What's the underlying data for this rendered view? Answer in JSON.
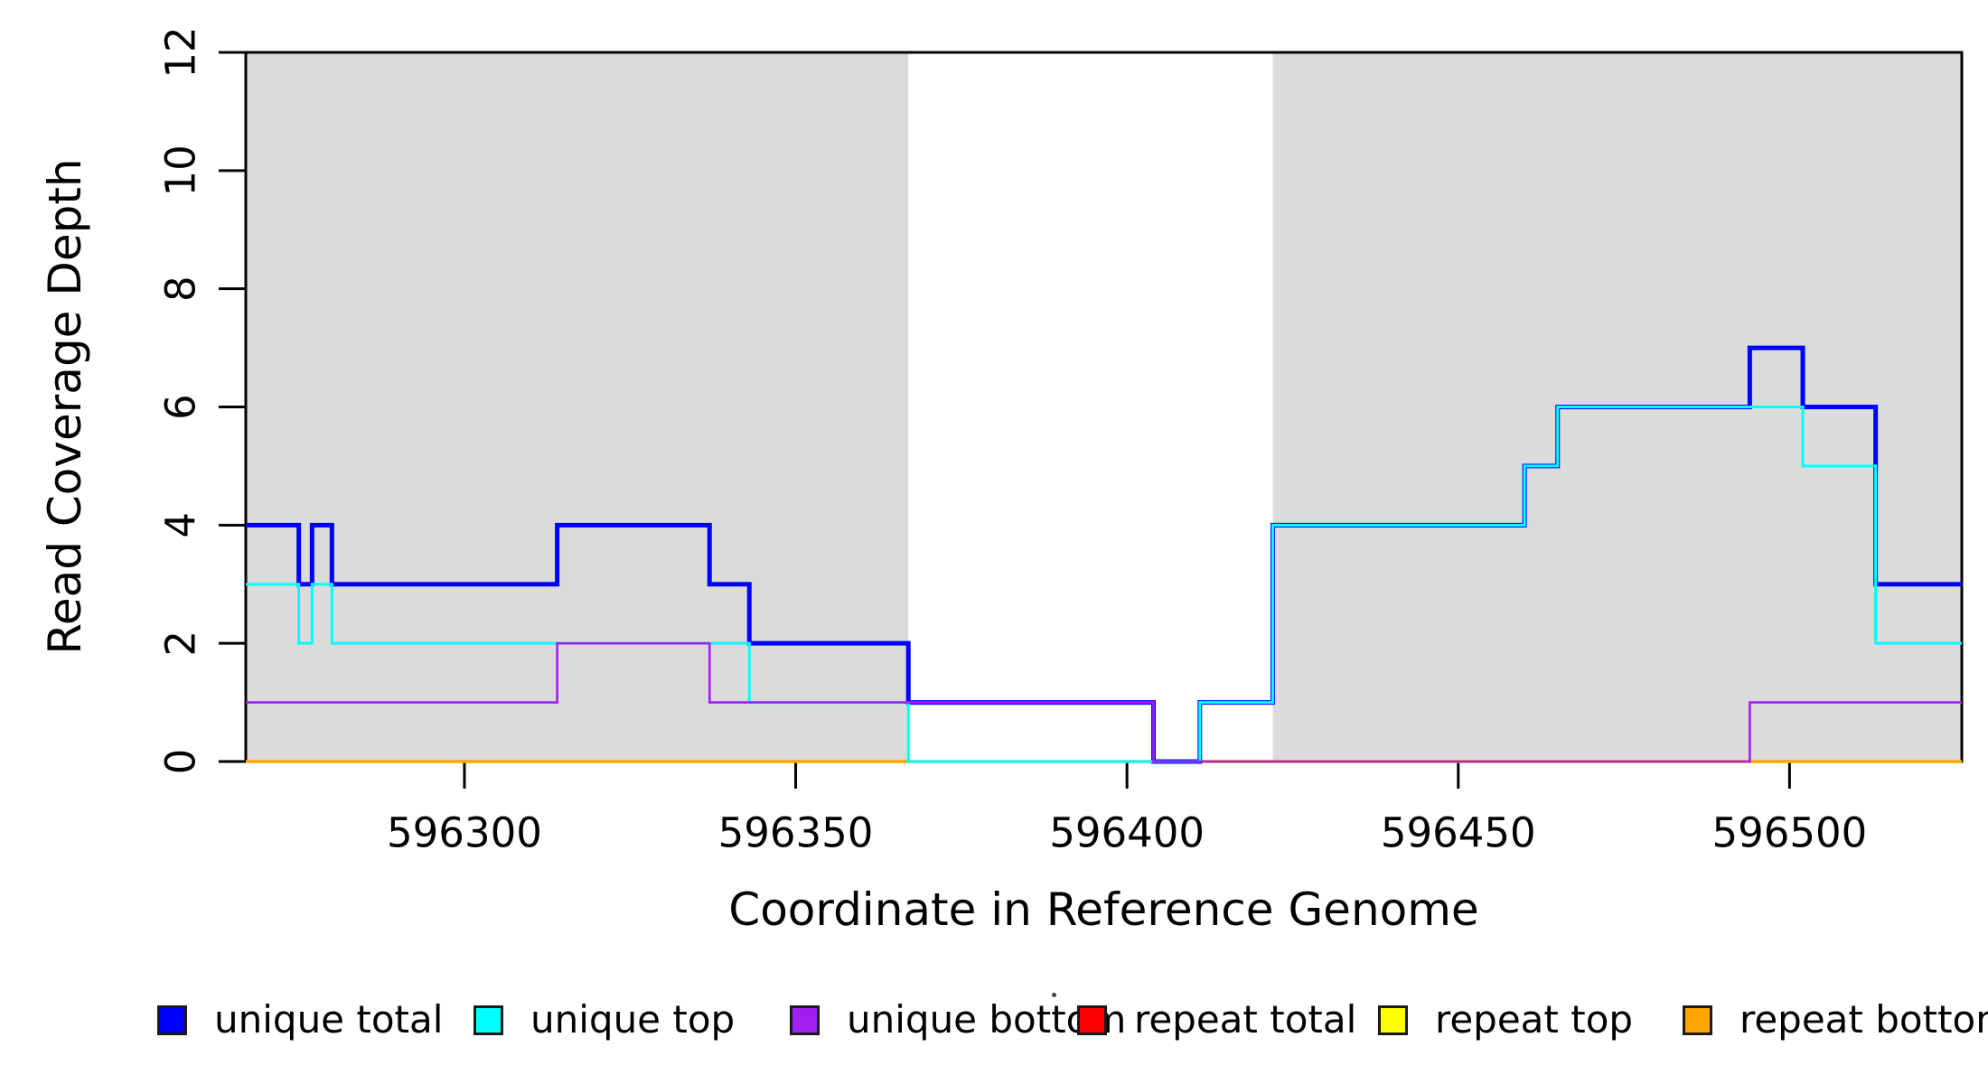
{
  "figure": {
    "xlabel": "Coordinate in Reference Genome",
    "ylabel": "Read Coverage Depth"
  },
  "legend": {
    "items": [
      {
        "label": "unique total",
        "color": "#0000FF"
      },
      {
        "label": "unique top",
        "color": "#00FFFF"
      },
      {
        "label": "unique bottom",
        "color": "#A020F0"
      },
      {
        "label": "repeat total",
        "color": "#FF0000"
      },
      {
        "label": "repeat top",
        "color": "#FFFF00"
      },
      {
        "label": "repeat bottom",
        "color": "#FFA500"
      }
    ]
  },
  "chart_data": {
    "type": "line",
    "subtype": "step-post",
    "title": "",
    "xlabel": "Coordinate in Reference Genome",
    "ylabel": "Read Coverage Depth",
    "xlim": [
      596267,
      596526
    ],
    "ylim": [
      0,
      12
    ],
    "xticks": [
      596300,
      596350,
      596400,
      596450,
      596500
    ],
    "yticks": [
      0,
      2,
      4,
      6,
      8,
      10,
      12
    ],
    "grid": false,
    "legend_position": "bottom",
    "plot_background": "#FFFFFF",
    "shaded_regions": [
      {
        "x0": 596267,
        "x1": 596367,
        "color": "#DBDBDB"
      },
      {
        "x0": 596422,
        "x1": 596526,
        "color": "#DBDBDB"
      }
    ],
    "series": [
      {
        "name": "repeat total",
        "color": "#FF0000",
        "width": 3,
        "points": [
          [
            596267,
            0
          ]
        ]
      },
      {
        "name": "repeat top",
        "color": "#FFFF00",
        "width": 3,
        "points": [
          [
            596267,
            0
          ]
        ]
      },
      {
        "name": "repeat bottom",
        "color": "#FFA500",
        "width": 3.5,
        "points": [
          [
            596267,
            0
          ]
        ]
      },
      {
        "name": "unique total",
        "color": "#0000FF",
        "width": 5,
        "points": [
          [
            596267,
            4
          ],
          [
            596275,
            3
          ],
          [
            596277,
            4
          ],
          [
            596280,
            3
          ],
          [
            596314,
            4
          ],
          [
            596337,
            3
          ],
          [
            596343,
            2
          ],
          [
            596367,
            1
          ],
          [
            596404,
            0
          ],
          [
            596411,
            1
          ],
          [
            596422,
            4
          ],
          [
            596460,
            5
          ],
          [
            596465,
            6
          ],
          [
            596494,
            7
          ],
          [
            596502,
            6
          ],
          [
            596513,
            3
          ]
        ]
      },
      {
        "name": "unique top",
        "color": "#00FFFF",
        "width": 3,
        "points": [
          [
            596267,
            3
          ],
          [
            596275,
            2
          ],
          [
            596277,
            3
          ],
          [
            596280,
            2
          ],
          [
            596343,
            1
          ],
          [
            596367,
            0
          ],
          [
            596411,
            1
          ],
          [
            596422,
            4
          ],
          [
            596460,
            5
          ],
          [
            596465,
            6
          ],
          [
            596502,
            5
          ],
          [
            596513,
            2
          ]
        ]
      },
      {
        "name": "unique bottom",
        "color": "#A020F0",
        "width": 2.6,
        "points": [
          [
            596267,
            1
          ],
          [
            596314,
            2
          ],
          [
            596337,
            1
          ],
          [
            596404,
            0
          ],
          [
            596494,
            1
          ]
        ]
      }
    ],
    "x_end": 596526,
    "draw_order_note": "repeat total, repeat top, repeat bottom, unique total, unique top, unique bottom"
  }
}
